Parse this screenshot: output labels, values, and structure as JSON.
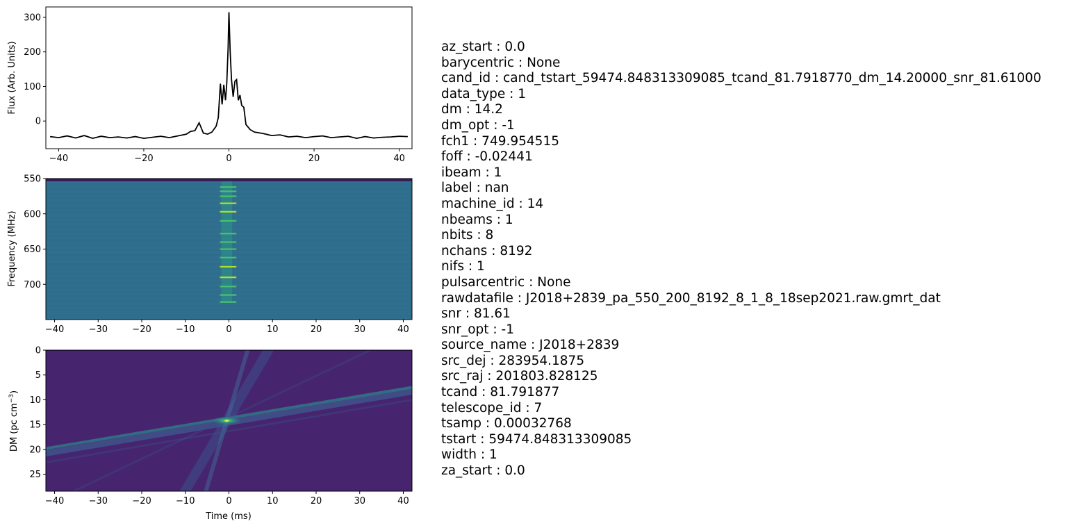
{
  "chart_data": [
    {
      "type": "line",
      "panel": "time-series",
      "title": "",
      "xlabel": "",
      "ylabel": "Flux (Arb. Units)",
      "xlim": [
        -43,
        43
      ],
      "ylim": [
        -80,
        330
      ],
      "xticks": [
        -40,
        -20,
        0,
        20,
        40
      ],
      "xtick_labels": [
        "−40",
        "−20",
        "0",
        "20",
        "40"
      ],
      "yticks": [
        0,
        100,
        200,
        300
      ],
      "ytick_labels": [
        "0",
        "100",
        "200",
        "300"
      ],
      "color": "#000000",
      "series": [
        {
          "x": [
            -42,
            -40,
            -38,
            -36,
            -34,
            -32,
            -30,
            -28,
            -26,
            -24,
            -22,
            -20,
            -18,
            -16,
            -14,
            -12,
            -10,
            -9,
            -8,
            -7,
            -6,
            -5,
            -4,
            -3,
            -2.5,
            -2,
            -1.6,
            -1.2,
            -0.8,
            -0.5,
            -0.2,
            0,
            0.3,
            0.6,
            1.0,
            1.4,
            1.8,
            2.2,
            2.6,
            3.0,
            3.5,
            4,
            5,
            6,
            8,
            10,
            12,
            14,
            16,
            18,
            20,
            22,
            24,
            26,
            28,
            30,
            32,
            34,
            36,
            38,
            40,
            42
          ],
          "y": [
            -45,
            -48,
            -43,
            -49,
            -42,
            -50,
            -44,
            -48,
            -46,
            -49,
            -45,
            -50,
            -47,
            -44,
            -48,
            -43,
            -38,
            -30,
            -28,
            -5,
            -35,
            -38,
            -32,
            -15,
            10,
            108,
            48,
            105,
            60,
            110,
            210,
            315,
            200,
            120,
            70,
            115,
            120,
            60,
            75,
            45,
            40,
            -10,
            -25,
            -32,
            -36,
            -42,
            -40,
            -46,
            -44,
            -48,
            -45,
            -43,
            -48,
            -46,
            -44,
            -50,
            -45,
            -49,
            -47,
            -46,
            -44,
            -45
          ]
        }
      ]
    },
    {
      "type": "heatmap",
      "panel": "dynamic-spectrum",
      "title": "",
      "xlabel": "",
      "ylabel": "Frequency (MHz)",
      "xlim": [
        -42,
        42
      ],
      "ylim": [
        750,
        550
      ],
      "xticks": [
        -40,
        -30,
        -20,
        -10,
        0,
        10,
        20,
        30,
        40
      ],
      "xtick_labels": [
        "−40",
        "−30",
        "−20",
        "−10",
        "0",
        "10",
        "20",
        "30",
        "40"
      ],
      "yticks": [
        550,
        600,
        650,
        700
      ],
      "ytick_labels": [
        "550",
        "600",
        "650",
        "700"
      ],
      "colormap": "viridis",
      "background_color": "#2f6f8d",
      "band_edge_color": "#3a1a5a",
      "pulse_time": -0.5,
      "pulse_width": 2.5,
      "bright_frequencies": [
        562,
        568,
        575,
        585,
        597,
        610,
        628,
        640,
        650,
        662,
        675,
        690,
        703,
        715,
        725
      ]
    },
    {
      "type": "heatmap",
      "panel": "dm-time",
      "title": "",
      "xlabel": "Time (ms)",
      "ylabel": "DM (pc cm⁻³)",
      "xlim": [
        -42,
        42
      ],
      "ylim": [
        28.4,
        0
      ],
      "xticks": [
        -40,
        -30,
        -20,
        -10,
        0,
        10,
        20,
        30,
        40
      ],
      "xtick_labels": [
        "−40",
        "−30",
        "−20",
        "−10",
        "0",
        "10",
        "20",
        "30",
        "40"
      ],
      "yticks": [
        0,
        5,
        10,
        15,
        20,
        25
      ],
      "ytick_labels": [
        "0",
        "5",
        "10",
        "15",
        "20",
        "25"
      ],
      "colormap": "viridis",
      "background_color": "#46246e",
      "peak_time": -0.5,
      "peak_dm": 14.2
    }
  ],
  "params": [
    "az_start : 0.0",
    "barycentric : None",
    "cand_id : cand_tstart_59474.848313309085_tcand_81.7918770_dm_14.20000_snr_81.61000",
    "data_type : 1",
    "dm : 14.2",
    "dm_opt : -1",
    "fch1 : 749.954515",
    "foff : -0.02441",
    "ibeam : 1",
    "label : nan",
    "machine_id : 14",
    "nbeams : 1",
    "nbits : 8",
    "nchans : 8192",
    "nifs : 1",
    "pulsarcentric : None",
    "rawdatafile : J2018+2839_pa_550_200_8192_8_1_8_18sep2021.raw.gmrt_dat",
    "snr : 81.61",
    "snr_opt : -1",
    "source_name : J2018+2839",
    "src_dej : 283954.1875",
    "src_raj : 201803.828125",
    "tcand : 81.791877",
    "telescope_id : 7",
    "tsamp : 0.00032768",
    "tstart : 59474.848313309085",
    "width : 1",
    "za_start : 0.0"
  ]
}
